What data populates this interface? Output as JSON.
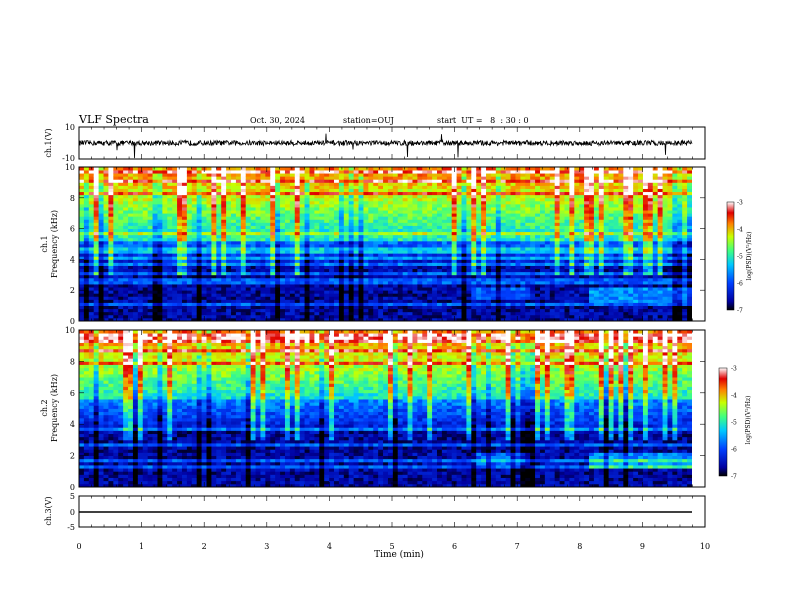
{
  "header": {
    "title": "VLF Spectra",
    "date": "Oct. 30, 2024",
    "station": "station=OUJ",
    "start": "start  UT =   8  : 30 : 0"
  },
  "chart_data": {
    "type": "heatmap",
    "xlabel": "Time (min)",
    "xlim": [
      0,
      10
    ],
    "xticks": [
      "0",
      "1",
      "2",
      "3",
      "4",
      "5",
      "6",
      "7",
      "8",
      "9",
      "10"
    ],
    "waveform1": {
      "label": "ch.1(V)",
      "ylim": [
        -10,
        10
      ],
      "yticks": [
        "10",
        "-10"
      ],
      "baseline": 0
    },
    "spectrogram1": {
      "label_ch": "ch.1",
      "label_y": "Frequency (kHz)",
      "ylim": [
        0,
        10
      ],
      "yticks": [
        "0",
        "2",
        "4",
        "6",
        "8",
        "10"
      ],
      "colorbar": {
        "label": "log(PSD)(V²/Hz)",
        "ticks": [
          "-3",
          "-4",
          "-5",
          "-6",
          "-7"
        ],
        "range": [
          -7,
          -3
        ]
      }
    },
    "spectrogram2": {
      "label_ch": "ch.2",
      "label_y": "Frequency (kHz)",
      "ylim": [
        0,
        10
      ],
      "yticks": [
        "0",
        "2",
        "4",
        "6",
        "8",
        "10"
      ],
      "colorbar": {
        "label": "log(PSD)(V²/Hz)",
        "ticks": [
          "-3",
          "-4",
          "-5",
          "-6",
          "-7"
        ],
        "range": [
          -7,
          -3
        ]
      }
    },
    "waveform3": {
      "label": "ch.3(V)",
      "ylim": [
        -5,
        5
      ],
      "yticks": [
        "5",
        "0",
        "-5"
      ],
      "baseline": 0
    }
  }
}
